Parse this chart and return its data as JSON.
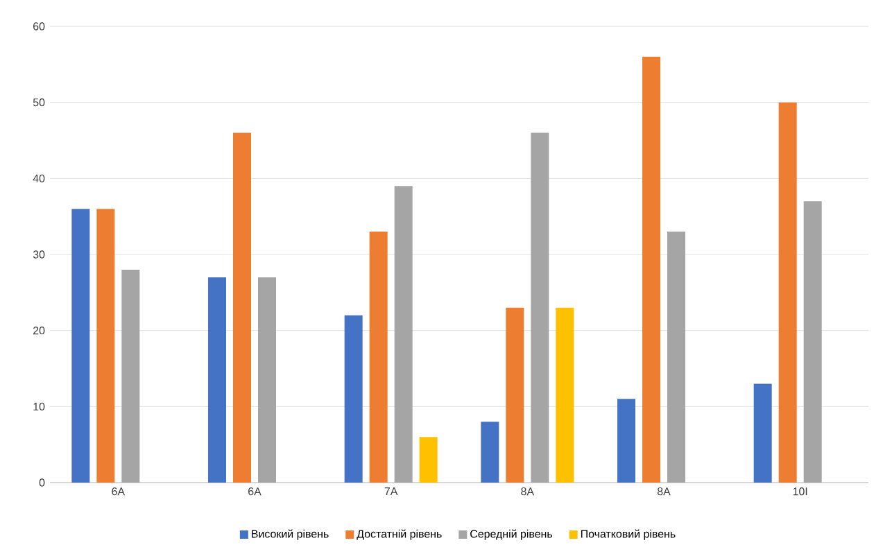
{
  "chart_data": {
    "type": "bar",
    "categories": [
      "6А",
      "6А",
      "7А",
      "8А",
      "8А",
      "10І"
    ],
    "series": [
      {
        "name": "Високий рівень",
        "color": "#4472c4",
        "values": [
          36,
          27,
          22,
          8,
          11,
          13
        ]
      },
      {
        "name": "Достатній рівень",
        "color": "#ed7d31",
        "values": [
          36,
          46,
          33,
          23,
          56,
          50
        ]
      },
      {
        "name": "Середній рівень",
        "color": "#a5a5a5",
        "values": [
          28,
          27,
          39,
          46,
          33,
          37
        ]
      },
      {
        "name": "Початковий рівень",
        "color": "#ffc000",
        "values": [
          null,
          null,
          6,
          23,
          null,
          null
        ]
      }
    ],
    "ylim": [
      0,
      60
    ],
    "yticks": [
      0,
      10,
      20,
      30,
      40,
      50,
      60
    ],
    "grid": "y",
    "legend": "bottom"
  }
}
